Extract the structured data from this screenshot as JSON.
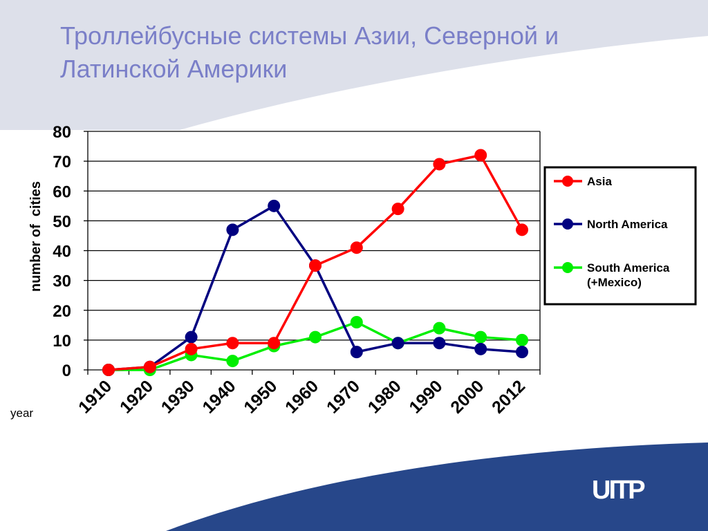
{
  "slide": {
    "title_line1": "Троллейбусные системы Азии, Северной и",
    "title_line2": "Латинской Америки"
  },
  "logo": {
    "text": "UITP",
    "color": "#ffffff"
  },
  "colors": {
    "top_band": "#dde0ea",
    "bottom_band": "#27478a",
    "title": "#7a7fc8"
  },
  "chart_data": {
    "type": "line",
    "title": "",
    "xlabel": "year",
    "ylabel": "number of  cities",
    "categories": [
      "1910",
      "1920",
      "1930",
      "1940",
      "1950",
      "1960",
      "1970",
      "1980",
      "1990",
      "2000",
      "2012"
    ],
    "ylim": [
      0,
      80
    ],
    "yticks": [
      0,
      10,
      20,
      30,
      40,
      50,
      60,
      70,
      80
    ],
    "grid": true,
    "legend_position": "right",
    "series": [
      {
        "name": "Asia",
        "color": "#ff0000",
        "values": [
          0,
          1,
          7,
          9,
          9,
          35,
          41,
          54,
          69,
          72,
          47
        ]
      },
      {
        "name": "North America",
        "color": "#000080",
        "values": [
          0,
          1,
          11,
          47,
          55,
          35,
          6,
          9,
          9,
          7,
          6
        ]
      },
      {
        "name": "South America\n(+Mexico)",
        "color": "#00ee00",
        "values": [
          0,
          0,
          5,
          3,
          8,
          11,
          16,
          9,
          14,
          11,
          10
        ]
      }
    ]
  }
}
